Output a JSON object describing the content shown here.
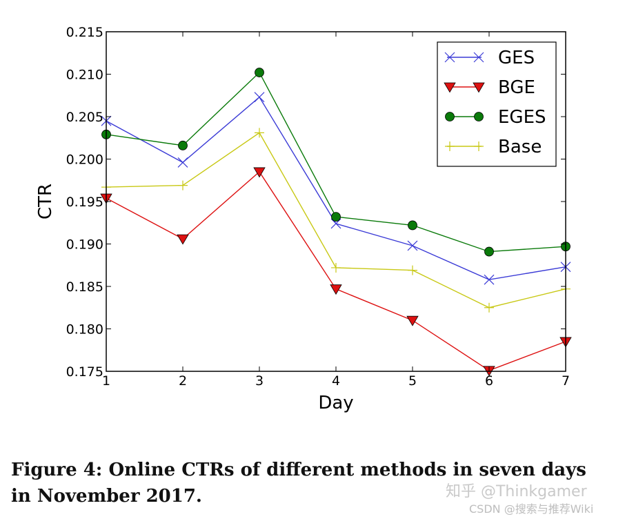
{
  "chart_data": {
    "type": "line",
    "title": "",
    "xlabel": "Day",
    "ylabel": "CTR",
    "x": [
      1,
      2,
      3,
      4,
      5,
      6,
      7
    ],
    "xlim": [
      1,
      7
    ],
    "ylim": [
      0.175,
      0.215
    ],
    "x_ticks": [
      "1",
      "2",
      "3",
      "4",
      "5",
      "6",
      "7"
    ],
    "y_ticks": [
      "0.175",
      "0.180",
      "0.185",
      "0.190",
      "0.195",
      "0.200",
      "0.205",
      "0.210",
      "0.215"
    ],
    "grid": false,
    "legend_position": "top-right",
    "series": [
      {
        "name": "GES",
        "color": "#3a3ad6",
        "marker": "x",
        "values": [
          0.2045,
          0.1996,
          0.2073,
          0.1924,
          0.1898,
          0.1858,
          0.1873
        ]
      },
      {
        "name": "BGE",
        "color": "#dd1111",
        "marker": "triangle-down",
        "values": [
          0.1954,
          0.1906,
          0.1985,
          0.1847,
          0.181,
          0.1751,
          0.1785
        ]
      },
      {
        "name": "EGES",
        "color": "#0a7a0a",
        "marker": "circle",
        "values": [
          0.2029,
          0.2016,
          0.2102,
          0.1932,
          0.1922,
          0.1891,
          0.1897
        ]
      },
      {
        "name": "Base",
        "color": "#c8c814",
        "marker": "plus",
        "values": [
          0.1967,
          0.1969,
          0.2031,
          0.1872,
          0.1869,
          0.1825,
          0.1847
        ]
      }
    ]
  },
  "caption": "Figure 4: Online CTRs of different methods in seven days in November 2017.",
  "watermark": {
    "line1": "知乎 @Thinkgamer",
    "line2": "CSDN @搜索与推荐Wiki"
  }
}
